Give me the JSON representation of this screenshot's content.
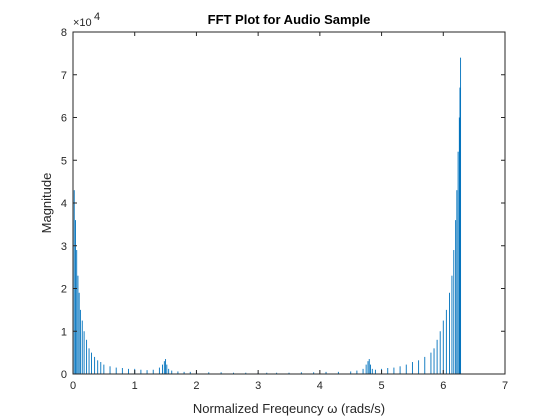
{
  "chart_data": {
    "type": "bar",
    "title": "FFT Plot for Audio Sample",
    "xlabel": "Normalized Freqeuncy ω (rads/s)",
    "ylabel": "Magnitude",
    "y_exponent_label": "×10",
    "y_exponent_power": "4",
    "xlim": [
      0,
      7
    ],
    "ylim": [
      0,
      8
    ],
    "xticks": [
      0,
      1,
      2,
      3,
      4,
      5,
      6,
      7
    ],
    "yticks": [
      0,
      1,
      2,
      3,
      4,
      5,
      6,
      7,
      8
    ],
    "grid": false,
    "y_units_note": "y values in units of 10^4",
    "series": [
      {
        "color": "#0072BD",
        "x": [
          0.0,
          0.02,
          0.04,
          0.06,
          0.08,
          0.1,
          0.12,
          0.15,
          0.18,
          0.22,
          0.26,
          0.3,
          0.35,
          0.4,
          0.45,
          0.5,
          0.6,
          0.7,
          0.8,
          0.9,
          1.0,
          1.1,
          1.2,
          1.3,
          1.4,
          1.45,
          1.48,
          1.5,
          1.52,
          1.55,
          1.6,
          1.7,
          1.8,
          1.9,
          2.0,
          2.2,
          2.4,
          2.6,
          2.8,
          3.0,
          3.14,
          3.3,
          3.5,
          3.7,
          3.9,
          4.1,
          4.3,
          4.5,
          4.6,
          4.7,
          4.75,
          4.78,
          4.8,
          4.82,
          4.85,
          4.9,
          5.0,
          5.1,
          5.2,
          5.3,
          5.4,
          5.5,
          5.6,
          5.7,
          5.8,
          5.85,
          5.9,
          5.95,
          6.0,
          6.05,
          6.1,
          6.14,
          6.17,
          6.2,
          6.22,
          6.24,
          6.26,
          6.27,
          6.28
        ],
        "y": [
          5.2,
          4.3,
          3.6,
          2.9,
          2.3,
          1.9,
          1.5,
          1.25,
          1.0,
          0.8,
          0.6,
          0.5,
          0.4,
          0.32,
          0.28,
          0.22,
          0.18,
          0.15,
          0.14,
          0.12,
          0.12,
          0.1,
          0.09,
          0.1,
          0.15,
          0.22,
          0.3,
          0.35,
          0.22,
          0.12,
          0.08,
          0.06,
          0.05,
          0.05,
          0.05,
          0.04,
          0.04,
          0.03,
          0.03,
          0.03,
          0.03,
          0.03,
          0.03,
          0.04,
          0.04,
          0.05,
          0.05,
          0.06,
          0.08,
          0.12,
          0.22,
          0.3,
          0.35,
          0.22,
          0.12,
          0.1,
          0.12,
          0.14,
          0.15,
          0.18,
          0.22,
          0.28,
          0.32,
          0.4,
          0.5,
          0.6,
          0.8,
          1.0,
          1.25,
          1.5,
          1.9,
          2.3,
          2.9,
          3.6,
          4.3,
          5.2,
          6.0,
          6.7,
          7.4
        ]
      }
    ]
  }
}
